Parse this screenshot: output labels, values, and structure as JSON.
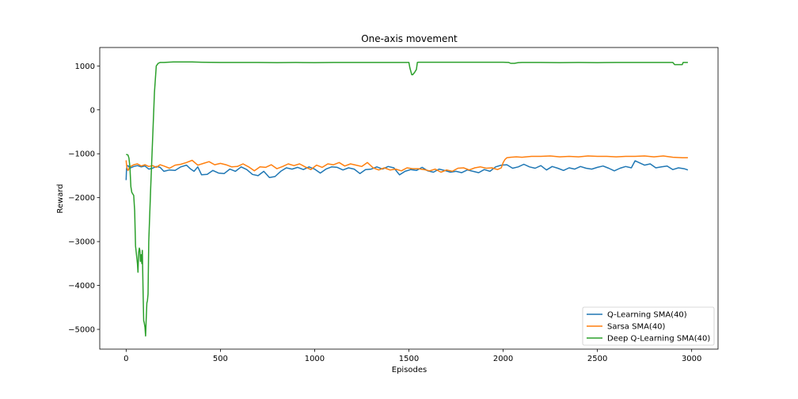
{
  "chart_data": {
    "type": "line",
    "title": "One-axis movement",
    "xlabel": "Episodes",
    "ylabel": "Reward",
    "xlim": [
      -140,
      3140
    ],
    "ylim": [
      -5450,
      1420
    ],
    "xticks": [
      0,
      500,
      1000,
      1500,
      2000,
      2500,
      3000
    ],
    "yticks": [
      -5000,
      -4000,
      -3000,
      -2000,
      -1000,
      0,
      1000
    ],
    "legend_position": "lower-right",
    "grid": false,
    "series": [
      {
        "name": "Q-Learning SMA(40)",
        "color": "#1f77b4",
        "x": [
          0,
          2,
          5,
          10,
          20,
          40,
          60,
          80,
          100,
          120,
          140,
          160,
          180,
          200,
          230,
          260,
          290,
          320,
          340,
          360,
          380,
          400,
          430,
          460,
          490,
          520,
          550,
          580,
          610,
          640,
          670,
          700,
          730,
          760,
          790,
          820,
          850,
          880,
          910,
          940,
          970,
          1000,
          1030,
          1060,
          1090,
          1120,
          1150,
          1180,
          1210,
          1240,
          1270,
          1300,
          1330,
          1360,
          1390,
          1420,
          1450,
          1480,
          1510,
          1540,
          1570,
          1600,
          1630,
          1660,
          1690,
          1720,
          1750,
          1780,
          1810,
          1840,
          1870,
          1900,
          1930,
          1960,
          1990,
          2020,
          2050,
          2080,
          2110,
          2140,
          2170,
          2200,
          2230,
          2260,
          2290,
          2320,
          2350,
          2380,
          2410,
          2440,
          2470,
          2500,
          2530,
          2560,
          2590,
          2620,
          2650,
          2680,
          2700,
          2720,
          2750,
          2780,
          2810,
          2840,
          2870,
          2900,
          2930,
          2960,
          2980
        ],
        "values": [
          -1600,
          -1350,
          -1280,
          -1270,
          -1330,
          -1290,
          -1270,
          -1300,
          -1280,
          -1350,
          -1330,
          -1290,
          -1310,
          -1400,
          -1370,
          -1380,
          -1300,
          -1260,
          -1340,
          -1400,
          -1300,
          -1480,
          -1470,
          -1380,
          -1440,
          -1450,
          -1350,
          -1400,
          -1300,
          -1360,
          -1470,
          -1500,
          -1400,
          -1540,
          -1520,
          -1400,
          -1320,
          -1350,
          -1310,
          -1360,
          -1300,
          -1350,
          -1440,
          -1350,
          -1300,
          -1310,
          -1370,
          -1320,
          -1350,
          -1450,
          -1360,
          -1350,
          -1300,
          -1350,
          -1290,
          -1320,
          -1480,
          -1400,
          -1360,
          -1380,
          -1310,
          -1390,
          -1420,
          -1350,
          -1380,
          -1420,
          -1400,
          -1430,
          -1370,
          -1400,
          -1430,
          -1360,
          -1400,
          -1300,
          -1260,
          -1250,
          -1330,
          -1300,
          -1240,
          -1300,
          -1330,
          -1270,
          -1370,
          -1290,
          -1330,
          -1380,
          -1320,
          -1350,
          -1290,
          -1330,
          -1350,
          -1310,
          -1280,
          -1330,
          -1390,
          -1330,
          -1290,
          -1320,
          -1160,
          -1200,
          -1260,
          -1230,
          -1320,
          -1300,
          -1280,
          -1360,
          -1320,
          -1340,
          -1370
        ]
      },
      {
        "name": "Sarsa SMA(40)",
        "color": "#ff7f0e",
        "x": [
          0,
          2,
          5,
          10,
          20,
          40,
          60,
          80,
          100,
          120,
          140,
          160,
          180,
          200,
          230,
          260,
          290,
          320,
          350,
          380,
          410,
          440,
          470,
          500,
          530,
          560,
          590,
          620,
          650,
          680,
          710,
          740,
          770,
          800,
          830,
          860,
          890,
          920,
          950,
          980,
          1010,
          1040,
          1070,
          1100,
          1130,
          1160,
          1190,
          1220,
          1250,
          1280,
          1310,
          1340,
          1370,
          1400,
          1430,
          1460,
          1490,
          1520,
          1550,
          1580,
          1610,
          1640,
          1670,
          1700,
          1730,
          1760,
          1790,
          1820,
          1850,
          1880,
          1910,
          1940,
          1970,
          1990,
          2000,
          2010,
          2020,
          2040,
          2070,
          2100,
          2150,
          2200,
          2250,
          2300,
          2350,
          2400,
          2450,
          2500,
          2550,
          2600,
          2650,
          2700,
          2750,
          2800,
          2850,
          2900,
          2950,
          2980
        ],
        "values": [
          -1150,
          -1250,
          -1330,
          -1380,
          -1300,
          -1250,
          -1230,
          -1280,
          -1250,
          -1290,
          -1270,
          -1310,
          -1250,
          -1280,
          -1330,
          -1260,
          -1240,
          -1200,
          -1150,
          -1260,
          -1220,
          -1180,
          -1250,
          -1220,
          -1250,
          -1300,
          -1290,
          -1230,
          -1300,
          -1390,
          -1300,
          -1310,
          -1250,
          -1340,
          -1290,
          -1230,
          -1270,
          -1230,
          -1300,
          -1360,
          -1260,
          -1310,
          -1230,
          -1250,
          -1200,
          -1280,
          -1230,
          -1260,
          -1290,
          -1200,
          -1320,
          -1370,
          -1320,
          -1370,
          -1350,
          -1390,
          -1320,
          -1340,
          -1340,
          -1360,
          -1390,
          -1350,
          -1420,
          -1370,
          -1400,
          -1330,
          -1320,
          -1370,
          -1320,
          -1300,
          -1330,
          -1320,
          -1360,
          -1320,
          -1200,
          -1130,
          -1090,
          -1080,
          -1070,
          -1080,
          -1060,
          -1060,
          -1050,
          -1070,
          -1060,
          -1070,
          -1050,
          -1060,
          -1060,
          -1070,
          -1060,
          -1060,
          -1050,
          -1070,
          -1050,
          -1080,
          -1090,
          -1090
        ]
      },
      {
        "name": "Deep Q-Learning SMA(40)",
        "color": "#2ca02c",
        "x": [
          0,
          5,
          10,
          15,
          20,
          25,
          30,
          40,
          45,
          50,
          55,
          60,
          63,
          66,
          70,
          73,
          76,
          80,
          83,
          86,
          90,
          93,
          96,
          100,
          103,
          106,
          110,
          113,
          116,
          120,
          125,
          130,
          140,
          150,
          160,
          170,
          180,
          200,
          250,
          300,
          350,
          400,
          500,
          600,
          700,
          800,
          900,
          1000,
          1100,
          1200,
          1300,
          1400,
          1500,
          1505,
          1510,
          1515,
          1520,
          1530,
          1540,
          1545,
          1550,
          1560,
          1600,
          1700,
          1800,
          1900,
          2000,
          2030,
          2040,
          2060,
          2080,
          2100,
          2200,
          2300,
          2400,
          2500,
          2600,
          2700,
          2800,
          2900,
          2910,
          2920,
          2950,
          2955,
          2960,
          2980
        ],
        "values": [
          -1020,
          -1020,
          -1030,
          -1100,
          -1300,
          -1750,
          -1880,
          -1950,
          -2300,
          -3100,
          -3300,
          -3500,
          -3700,
          -3250,
          -3150,
          -3200,
          -3450,
          -3300,
          -3500,
          -3200,
          -4200,
          -4800,
          -4850,
          -4950,
          -5150,
          -4800,
          -4400,
          -4350,
          -4200,
          -3000,
          -2400,
          -1800,
          -700,
          400,
          1000,
          1060,
          1080,
          1080,
          1090,
          1090,
          1090,
          1085,
          1080,
          1080,
          1080,
          1075,
          1080,
          1075,
          1080,
          1080,
          1080,
          1080,
          1080,
          960,
          880,
          800,
          800,
          850,
          920,
          1080,
          1085,
          1085,
          1085,
          1085,
          1085,
          1085,
          1085,
          1080,
          1060,
          1060,
          1075,
          1080,
          1080,
          1075,
          1080,
          1075,
          1080,
          1080,
          1080,
          1080,
          1030,
          1030,
          1030,
          1080,
          1080,
          1080
        ]
      }
    ]
  }
}
